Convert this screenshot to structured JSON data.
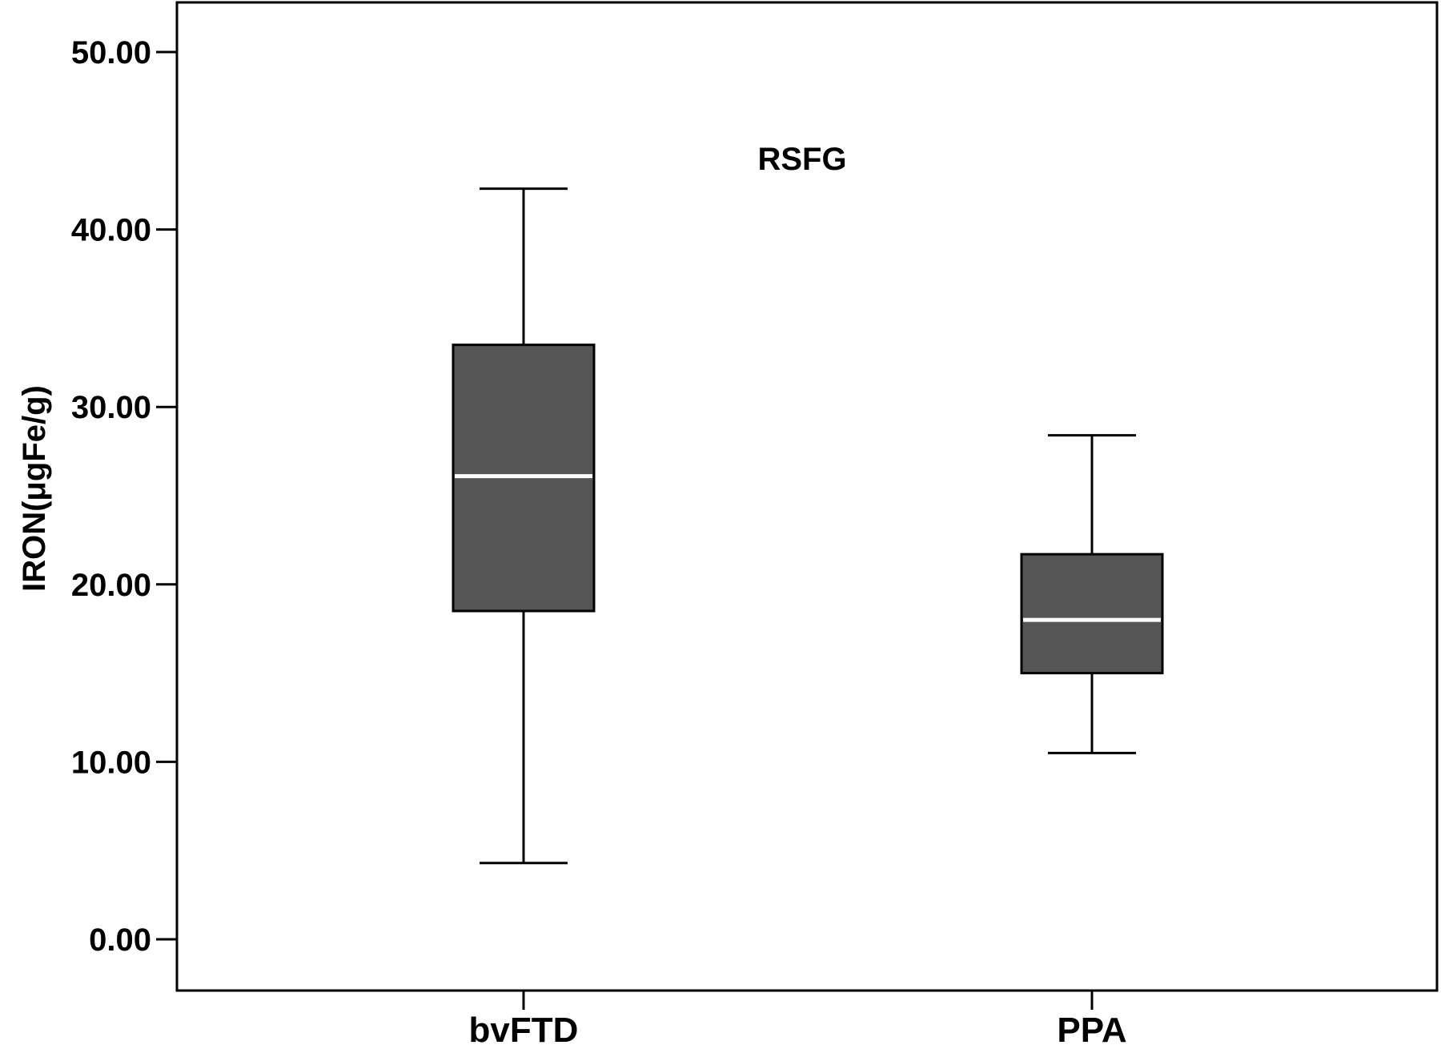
{
  "chart_data": {
    "type": "boxplot",
    "title": "RSFG",
    "ylabel": "IRON(μgFe/g)",
    "xlabel": "",
    "ylim": [
      -2.7,
      53
    ],
    "yticks": [
      "0.00",
      "10.00",
      "20.00",
      "30.00",
      "40.00",
      "50.00"
    ],
    "ytick_values": [
      0,
      10,
      20,
      30,
      40,
      50
    ],
    "categories": [
      "bvFTD",
      "PPA"
    ],
    "boxes": [
      {
        "category": "bvFTD",
        "whisker_low": 4.3,
        "q1": 18.5,
        "median": 26.1,
        "q3": 33.5,
        "whisker_high": 42.3
      },
      {
        "category": "PPA",
        "whisker_low": 10.5,
        "q1": 15.0,
        "median": 18.0,
        "q3": 21.7,
        "whisker_high": 28.4
      }
    ],
    "grid": false,
    "colors": {
      "box_fill": "#555555",
      "box_edge": "#000000",
      "median_line": "#ffffff",
      "axis": "#000000"
    }
  }
}
